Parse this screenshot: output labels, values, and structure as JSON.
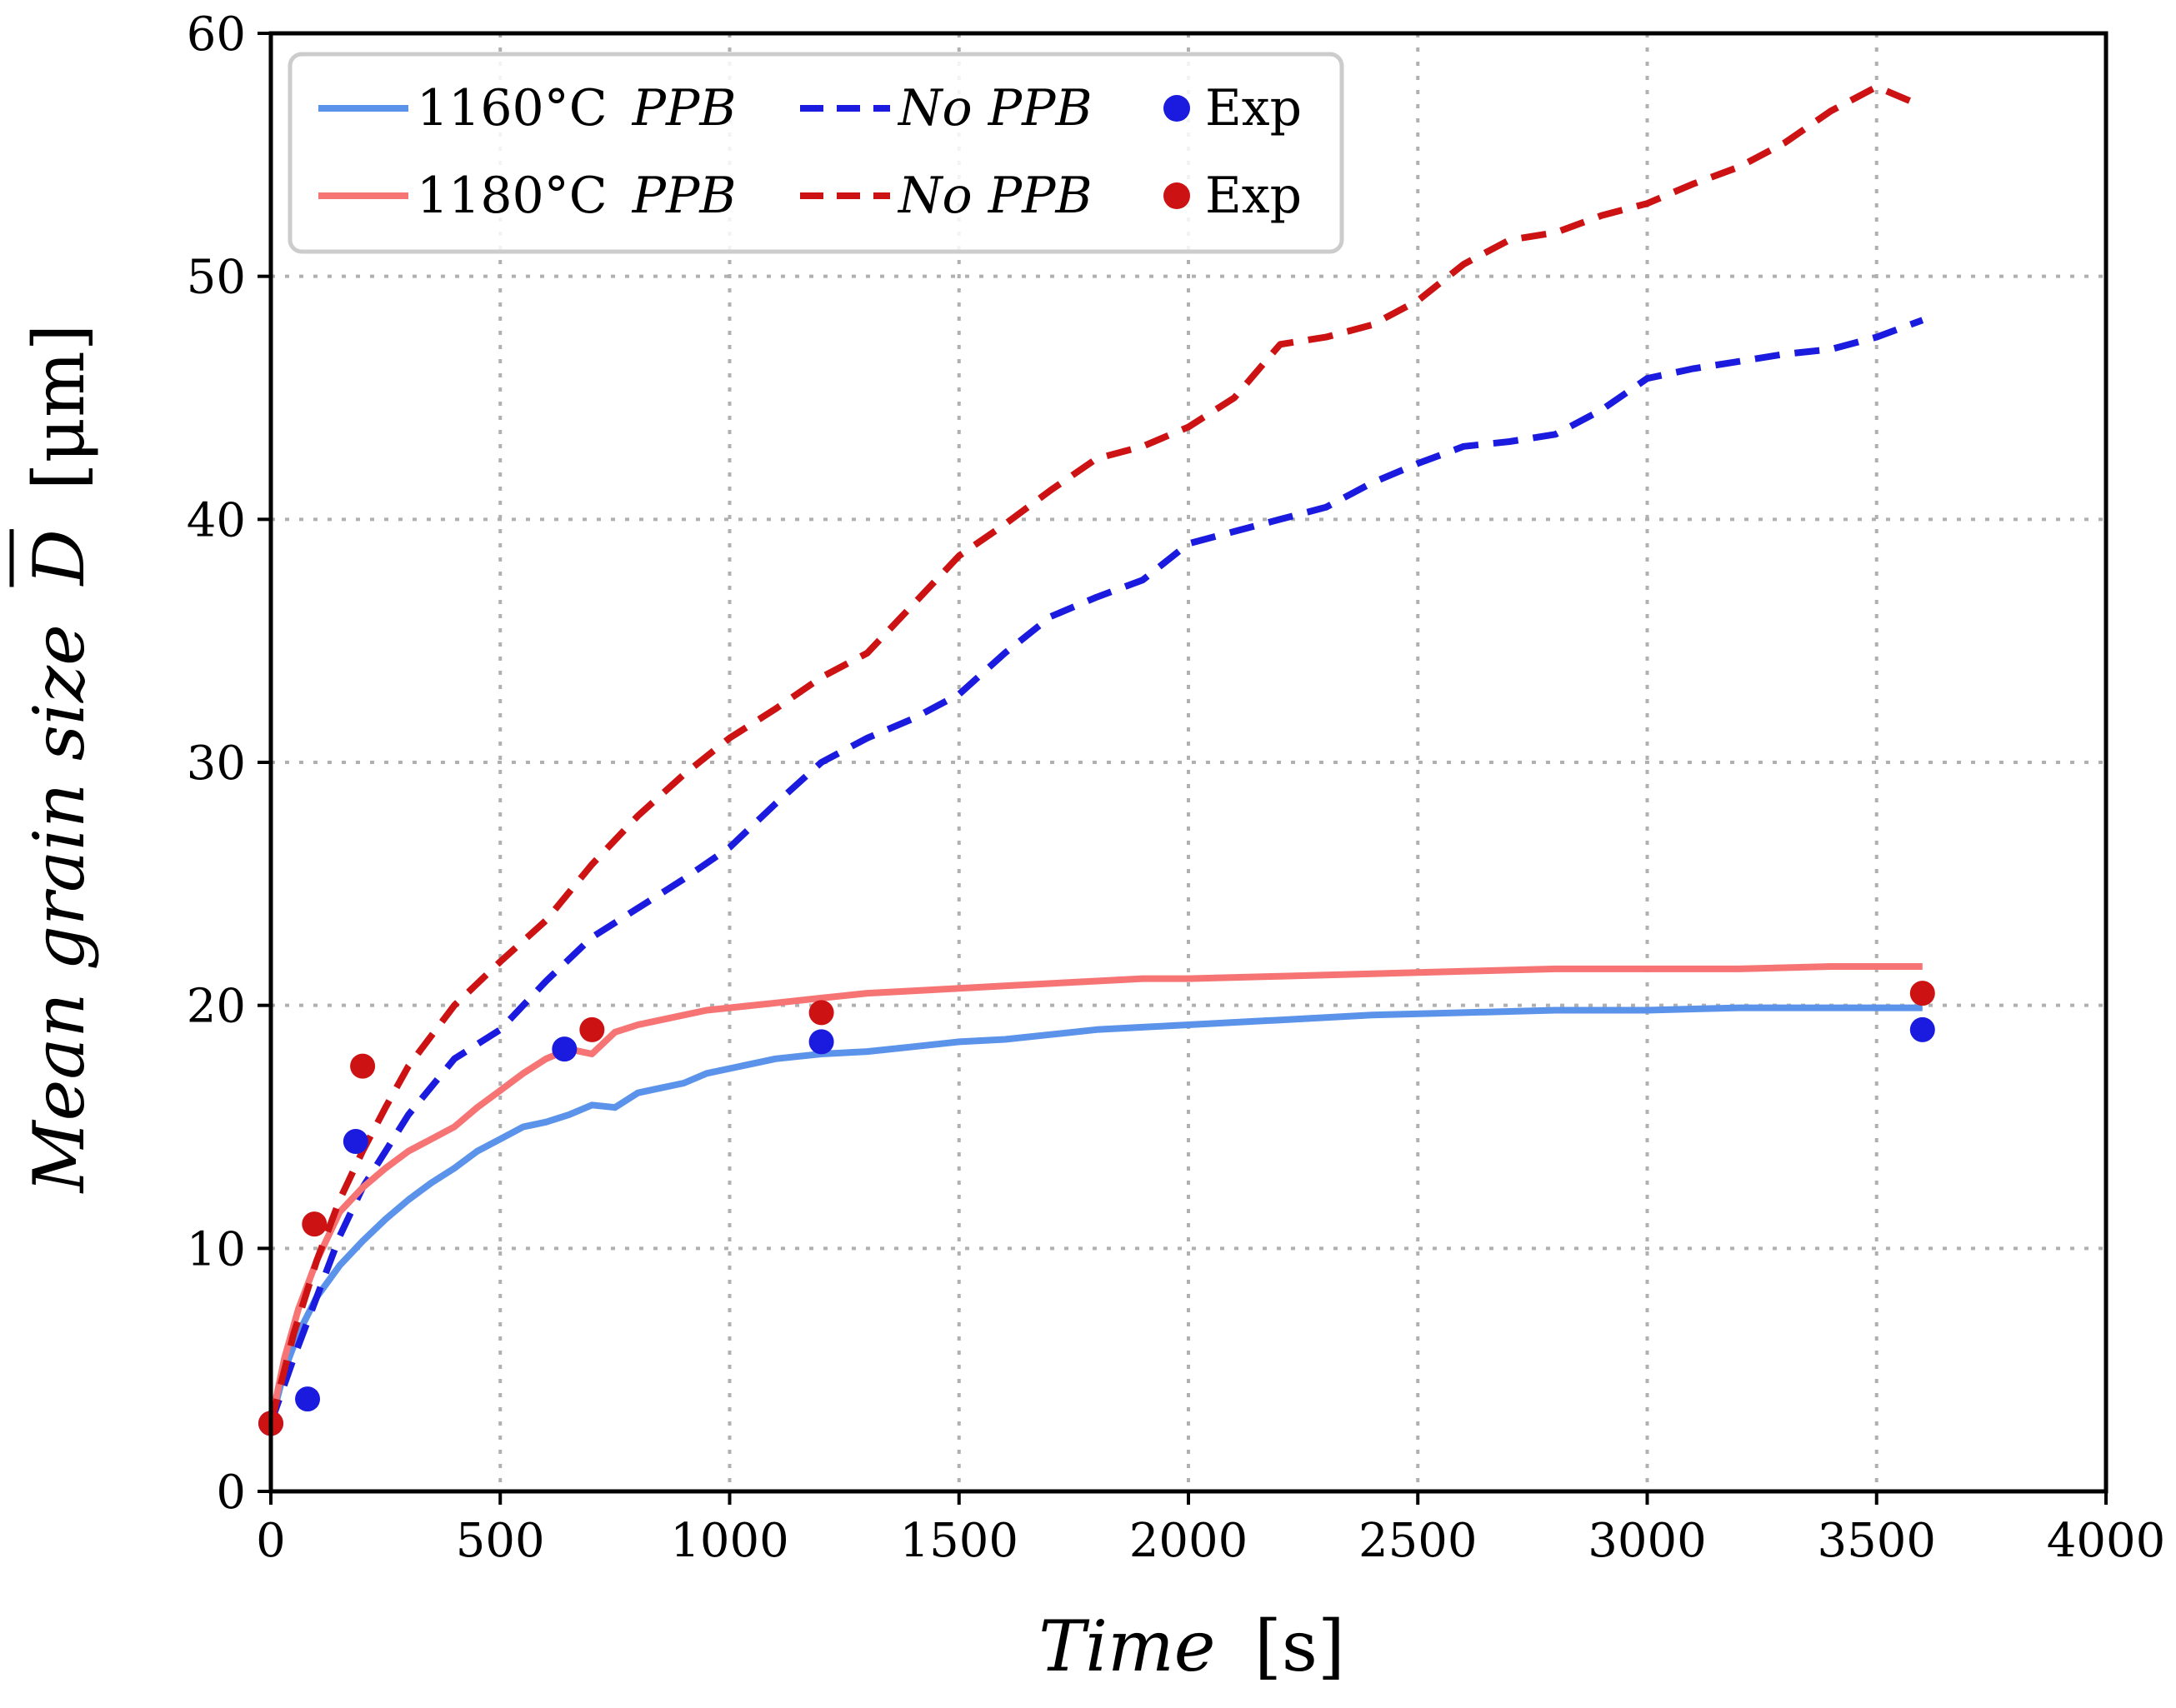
{
  "chart_data": {
    "type": "line",
    "xlabel": "Time",
    "xlabel_unit": "[s]",
    "ylabel": "Mean grain size",
    "ylabel_symbol": "D",
    "ylabel_unit": "[μm]",
    "xlim": [
      0,
      4000
    ],
    "ylim": [
      0,
      60
    ],
    "xticks": [
      0,
      500,
      1000,
      1500,
      2000,
      2500,
      3000,
      3500,
      4000
    ],
    "yticks": [
      0,
      10,
      20,
      30,
      40,
      50,
      60
    ],
    "grid": true,
    "legend_position": "top-left",
    "legend_rows": [
      {
        "temp_label": "1160°C",
        "ppb_label": "PPB",
        "no_ppb_label": "No PPB",
        "exp_label": "Exp",
        "color_solid": "#5c93ea",
        "color_dashed": "#1b1be0",
        "color_exp": "#1b1be0"
      },
      {
        "temp_label": "1180°C",
        "ppb_label": "PPB",
        "no_ppb_label": "No PPB",
        "exp_label": "Exp",
        "color_solid": "#f77474",
        "color_dashed": "#cc1212",
        "color_exp": "#cc1212"
      }
    ],
    "series": [
      {
        "name": "1160°C PPB",
        "style": "solid",
        "color": "#5c93ea",
        "x": [
          0,
          30,
          60,
          100,
          150,
          200,
          250,
          300,
          350,
          400,
          450,
          500,
          550,
          600,
          650,
          700,
          750,
          800,
          850,
          900,
          950,
          1000,
          1100,
          1200,
          1300,
          1400,
          1500,
          1600,
          1700,
          1800,
          1900,
          2000,
          2200,
          2400,
          2600,
          2800,
          3000,
          3200,
          3400,
          3600
        ],
        "values": [
          2.8,
          5.0,
          6.5,
          8.0,
          9.3,
          10.3,
          11.2,
          12.0,
          12.7,
          13.3,
          14.0,
          14.5,
          15.0,
          15.2,
          15.5,
          15.9,
          15.8,
          16.4,
          16.6,
          16.8,
          17.2,
          17.4,
          17.8,
          18.0,
          18.1,
          18.3,
          18.5,
          18.6,
          18.8,
          19.0,
          19.1,
          19.2,
          19.4,
          19.6,
          19.7,
          19.8,
          19.8,
          19.9,
          19.9,
          19.9
        ]
      },
      {
        "name": "1160°C No PPB",
        "style": "dashed",
        "color": "#1b1be0",
        "x": [
          0,
          50,
          100,
          150,
          200,
          250,
          300,
          400,
          500,
          600,
          700,
          800,
          900,
          1000,
          1100,
          1200,
          1300,
          1400,
          1500,
          1600,
          1700,
          1800,
          1900,
          2000,
          2100,
          2200,
          2300,
          2400,
          2500,
          2600,
          2700,
          2800,
          2900,
          3000,
          3100,
          3200,
          3300,
          3400,
          3500,
          3600
        ],
        "values": [
          2.8,
          5.5,
          8.0,
          10.5,
          12.5,
          14.0,
          15.5,
          17.8,
          19.0,
          21.0,
          22.8,
          24.0,
          25.2,
          26.5,
          28.3,
          30.0,
          31.0,
          31.8,
          32.8,
          34.5,
          36.0,
          36.8,
          37.5,
          39.0,
          39.5,
          40.0,
          40.5,
          41.5,
          42.3,
          43.0,
          43.2,
          43.5,
          44.5,
          45.8,
          46.2,
          46.5,
          46.8,
          47.0,
          47.5,
          48.2
        ]
      },
      {
        "name": "1180°C PPB",
        "style": "solid",
        "color": "#f77474",
        "x": [
          0,
          30,
          60,
          100,
          150,
          200,
          250,
          300,
          350,
          400,
          450,
          500,
          550,
          600,
          650,
          700,
          750,
          800,
          850,
          900,
          950,
          1000,
          1100,
          1200,
          1300,
          1400,
          1500,
          1600,
          1700,
          1800,
          1900,
          2000,
          2200,
          2400,
          2600,
          2800,
          3000,
          3200,
          3400,
          3600
        ],
        "values": [
          2.8,
          5.5,
          7.5,
          9.5,
          11.5,
          12.5,
          13.3,
          14.0,
          14.5,
          15.0,
          15.8,
          16.5,
          17.2,
          17.8,
          18.2,
          18.0,
          18.9,
          19.2,
          19.4,
          19.6,
          19.8,
          19.9,
          20.1,
          20.3,
          20.5,
          20.6,
          20.7,
          20.8,
          20.9,
          21.0,
          21.1,
          21.1,
          21.2,
          21.3,
          21.4,
          21.5,
          21.5,
          21.5,
          21.6,
          21.6
        ]
      },
      {
        "name": "1180°C No PPB",
        "style": "dashed",
        "color": "#cc1212",
        "x": [
          0,
          50,
          100,
          150,
          200,
          250,
          300,
          400,
          500,
          600,
          700,
          800,
          900,
          1000,
          1100,
          1200,
          1300,
          1400,
          1500,
          1600,
          1700,
          1800,
          1900,
          2000,
          2100,
          2200,
          2300,
          2400,
          2500,
          2600,
          2700,
          2800,
          2900,
          3000,
          3100,
          3200,
          3300,
          3400,
          3500,
          3600
        ],
        "values": [
          2.8,
          6.5,
          9.5,
          12.0,
          14.0,
          15.8,
          17.5,
          20.0,
          21.8,
          23.5,
          25.8,
          27.8,
          29.5,
          31.0,
          32.2,
          33.5,
          34.5,
          36.5,
          38.5,
          39.8,
          41.2,
          42.5,
          43.0,
          43.8,
          45.0,
          47.2,
          47.5,
          48.0,
          49.0,
          50.5,
          51.5,
          51.8,
          52.5,
          53.0,
          53.8,
          54.5,
          55.5,
          56.8,
          57.8,
          57.0
        ]
      },
      {
        "name": "1160°C Exp",
        "style": "points",
        "color": "#1b1be0",
        "x": [
          0,
          80,
          185,
          640,
          1200,
          3600
        ],
        "values": [
          2.8,
          3.8,
          14.4,
          18.2,
          18.5,
          19.0
        ]
      },
      {
        "name": "1180°C Exp",
        "style": "points",
        "color": "#cc1212",
        "x": [
          0,
          95,
          200,
          700,
          1200,
          3600
        ],
        "values": [
          2.8,
          11.0,
          17.5,
          19.0,
          19.7,
          20.5
        ]
      }
    ]
  }
}
